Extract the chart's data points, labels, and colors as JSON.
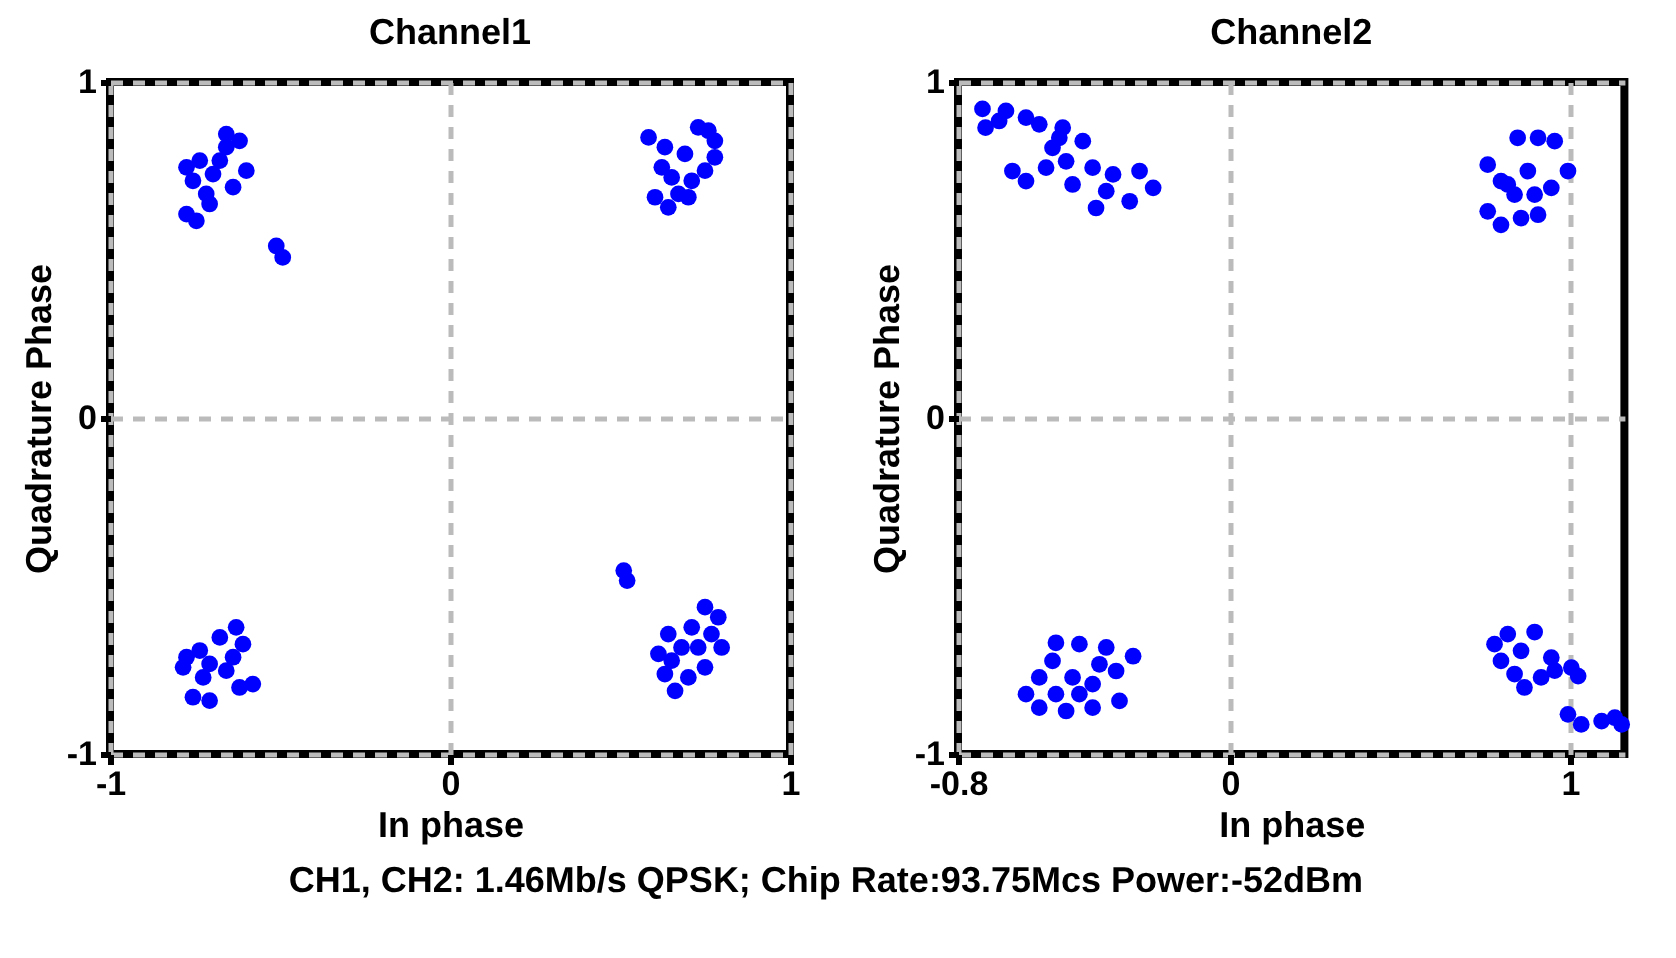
{
  "chart_data": [
    {
      "type": "scatter",
      "title": "Channel1",
      "xlabel": "In phase",
      "ylabel": "Quadrature Phase",
      "xlim": [
        -1,
        1
      ],
      "ylim": [
        -1,
        1
      ],
      "xticks": [
        -1,
        0,
        1
      ],
      "yticks": [
        -1,
        0,
        1
      ],
      "grid": true,
      "marker": "circle",
      "annotations": [
        "CH1, CH2: 1.46Mb/s QPSK; Chip Rate:93.75Mcs Power:-52dBm"
      ],
      "series": [
        {
          "color": "#0000ff",
          "x": [
            -0.775,
            -0.736,
            -0.658,
            -0.619,
            -0.677,
            -0.599,
            -0.638,
            -0.717,
            -0.775,
            -0.746,
            -0.707,
            -0.756,
            -0.658,
            -0.697,
            -0.511,
            -0.492,
            0.584,
            0.632,
            0.73,
            0.76,
            0.779,
            0.75,
            0.711,
            0.672,
            0.603,
            0.642,
            0.701,
            0.623,
            0.691,
            0.652,
            0.779,
            -0.775,
            -0.736,
            -0.677,
            -0.629,
            -0.609,
            -0.58,
            -0.619,
            -0.658,
            -0.707,
            -0.756,
            -0.707,
            -0.726,
            -0.638,
            -0.785,
            0.511,
            0.521,
            0.75,
            0.789,
            0.711,
            0.642,
            0.613,
            0.632,
            0.662,
            0.701,
            0.75,
            0.799,
            0.73,
            0.681,
            0.652,
            0.769
          ],
          "values": [
            0.746,
            0.766,
            0.845,
            0.825,
            0.766,
            0.736,
            0.687,
            0.667,
            0.607,
            0.587,
            0.637,
            0.706,
            0.806,
            0.726,
            0.512,
            0.478,
            0.835,
            0.806,
            0.865,
            0.855,
            0.776,
            0.736,
            0.706,
            0.667,
            0.657,
            0.627,
            0.657,
            0.746,
            0.786,
            0.716,
            0.825,
            -0.712,
            -0.692,
            -0.653,
            -0.623,
            -0.673,
            -0.792,
            -0.802,
            -0.752,
            -0.732,
            -0.831,
            -0.841,
            -0.772,
            -0.712,
            -0.742,
            -0.454,
            -0.484,
            -0.563,
            -0.593,
            -0.623,
            -0.643,
            -0.702,
            -0.762,
            -0.812,
            -0.772,
            -0.742,
            -0.683,
            -0.683,
            -0.683,
            -0.722,
            -0.643
          ]
        }
      ]
    },
    {
      "type": "scatter",
      "title": "Channel2",
      "xlabel": "In phase",
      "ylabel": "Quadrature Phase",
      "xlim": [
        -0.8,
        1.16
      ],
      "ylim": [
        -1,
        1
      ],
      "xticks": [
        -0.8,
        0,
        1
      ],
      "yticks": [
        -1,
        0,
        1
      ],
      "grid": true,
      "marker": "circle",
      "series": [
        {
          "color": "#0000ff",
          "x": [
            -0.728,
            -0.659,
            -0.719,
            -0.6,
            -0.561,
            -0.492,
            -0.433,
            -0.522,
            -0.482,
            -0.404,
            -0.344,
            -0.266,
            -0.226,
            -0.295,
            -0.394,
            -0.463,
            -0.6,
            -0.64,
            -0.541,
            -0.364,
            -0.679,
            -0.502,
            0.758,
            0.797,
            0.846,
            0.906,
            0.955,
            0.994,
            0.945,
            0.896,
            0.837,
            0.758,
            0.797,
            0.856,
            0.906,
            0.876,
            0.817,
            -0.512,
            -0.443,
            -0.364,
            -0.285,
            -0.335,
            -0.325,
            -0.404,
            -0.482,
            -0.561,
            -0.6,
            -0.561,
            -0.522,
            -0.463,
            -0.404,
            -0.443,
            -0.512,
            -0.384,
            0.778,
            0.817,
            0.896,
            0.856,
            0.797,
            0.837,
            0.866,
            0.915,
            0.955,
            1.004,
            1.024,
            0.945,
            0.994,
            1.033,
            1.093,
            1.132,
            1.152
          ],
          "values": [
            0.92,
            0.914,
            0.864,
            0.894,
            0.874,
            0.864,
            0.824,
            0.804,
            0.764,
            0.745,
            0.725,
            0.735,
            0.685,
            0.645,
            0.625,
            0.695,
            0.705,
            0.735,
            0.745,
            0.675,
            0.884,
            0.834,
            0.754,
            0.705,
            0.834,
            0.834,
            0.824,
            0.735,
            0.685,
            0.665,
            0.665,
            0.615,
            0.575,
            0.595,
            0.605,
            0.735,
            0.695,
            -0.669,
            -0.673,
            -0.683,
            -0.709,
            -0.753,
            -0.842,
            -0.862,
            -0.872,
            -0.862,
            -0.822,
            -0.772,
            -0.723,
            -0.772,
            -0.792,
            -0.822,
            -0.822,
            -0.733,
            -0.673,
            -0.643,
            -0.637,
            -0.693,
            -0.723,
            -0.762,
            -0.802,
            -0.772,
            -0.752,
            -0.743,
            -0.768,
            -0.713,
            -0.882,
            -0.912,
            -0.902,
            -0.892,
            -0.912
          ]
        }
      ]
    }
  ]
}
